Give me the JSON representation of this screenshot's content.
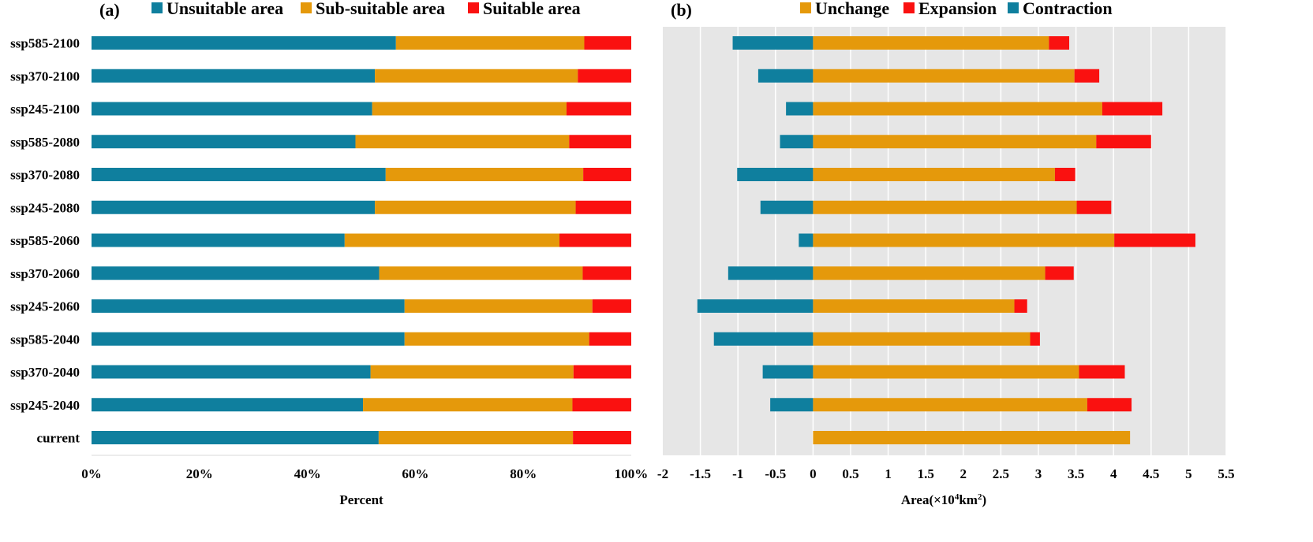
{
  "chart_data": [
    {
      "type": "bar",
      "orientation": "horizontal",
      "stacked": true,
      "panel_label": "(a)",
      "title": "",
      "xlabel": "Percent",
      "ylabel": "",
      "xlim": [
        0,
        100
      ],
      "x_ticks": [
        "0%",
        "20%",
        "40%",
        "60%",
        "80%",
        "100%"
      ],
      "legend_position": "top",
      "grid": false,
      "categories": [
        "ssp585-2100",
        "ssp370-2100",
        "ssp245-2100",
        "ssp585-2080",
        "ssp370-2080",
        "ssp245-2080",
        "ssp585-2060",
        "ssp370-2060",
        "ssp245-2060",
        "ssp585-2040",
        "ssp370-2040",
        "ssp245-2040",
        "current"
      ],
      "series": [
        {
          "name": "Unsuitable area",
          "color": "#0f7f9e",
          "values": [
            56.4,
            52.5,
            52.0,
            48.9,
            54.5,
            52.5,
            46.9,
            53.3,
            58.0,
            58.0,
            51.7,
            50.3,
            53.2
          ]
        },
        {
          "name": "Sub-suitable area",
          "color": "#e5990b",
          "values": [
            34.9,
            37.6,
            36.0,
            39.6,
            36.6,
            37.2,
            39.8,
            37.7,
            34.8,
            34.2,
            37.6,
            38.8,
            36.0
          ]
        },
        {
          "name": "Suitable area",
          "color": "#fa1110",
          "values": [
            8.7,
            9.9,
            12.0,
            11.5,
            8.9,
            10.3,
            13.3,
            9.0,
            7.2,
            7.8,
            10.7,
            10.9,
            10.8
          ]
        }
      ]
    },
    {
      "type": "bar",
      "orientation": "horizontal",
      "stacked": true,
      "panel_label": "(b)",
      "title": "",
      "xlabel_prefix": "Area(×10",
      "xlabel_sup": "4",
      "xlabel_mid": "km",
      "xlabel_sup2": "2",
      "xlabel_suffix": ")",
      "xlim": [
        -2,
        5.5
      ],
      "x_ticks": [
        "-2",
        "-1.5",
        "-1",
        "-0.5",
        "0",
        "0.5",
        "1",
        "1.5",
        "2",
        "2.5",
        "3",
        "3.5",
        "4",
        "4.5",
        "5",
        "5.5"
      ],
      "legend_position": "top",
      "grid": true,
      "background": "#e6e6e6",
      "categories": [
        "ssp585-2100",
        "ssp370-2100",
        "ssp245-2100",
        "ssp585-2080",
        "ssp370-2080",
        "ssp245-2080",
        "ssp585-2060",
        "ssp370-2060",
        "ssp245-2060",
        "ssp585-2040",
        "ssp370-2040",
        "ssp245-2040",
        "current"
      ],
      "series": [
        {
          "name": "Unchange",
          "color": "#e5990b",
          "values": [
            3.14,
            3.48,
            3.85,
            3.77,
            3.22,
            3.51,
            4.01,
            3.09,
            2.68,
            2.89,
            3.54,
            3.65,
            4.22
          ]
        },
        {
          "name": "Expansion",
          "color": "#fa1110",
          "values": [
            0.27,
            0.33,
            0.8,
            0.73,
            0.27,
            0.46,
            1.08,
            0.38,
            0.17,
            0.13,
            0.61,
            0.59,
            0.0
          ]
        },
        {
          "name": "Contraction",
          "color": "#0f7f9e",
          "values": [
            -1.07,
            -0.73,
            -0.36,
            -0.44,
            -1.01,
            -0.7,
            -0.19,
            -1.13,
            -1.54,
            -1.32,
            -0.67,
            -0.57,
            0.0
          ]
        }
      ]
    }
  ]
}
